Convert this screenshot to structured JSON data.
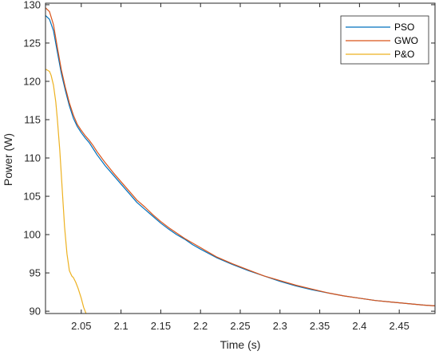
{
  "chart_data": {
    "type": "line",
    "title": "",
    "xlabel": "Time (s)",
    "ylabel": "Power  (W)",
    "xlim": [
      2.005,
      2.495
    ],
    "ylim": [
      89.7,
      130.2
    ],
    "xticks": [
      2.05,
      2.1,
      2.15,
      2.2,
      2.25,
      2.3,
      2.35,
      2.4,
      2.45
    ],
    "xtick_labels": [
      "2.05",
      "2.1",
      "2.15",
      "2.2",
      "2.25",
      "2.3",
      "2.35",
      "2.4",
      "2.45"
    ],
    "yticks": [
      90,
      95,
      100,
      105,
      110,
      115,
      120,
      125,
      130
    ],
    "ytick_labels": [
      "90",
      "95",
      "100",
      "105",
      "110",
      "115",
      "120",
      "125",
      "130"
    ],
    "grid": false,
    "legend_position": "top-right",
    "series": [
      {
        "name": "PSO",
        "color": "#0072BD",
        "x": [
          2.005,
          2.01,
          2.015,
          2.02,
          2.025,
          2.03,
          2.035,
          2.04,
          2.045,
          2.05,
          2.055,
          2.06,
          2.065,
          2.07,
          2.08,
          2.09,
          2.1,
          2.11,
          2.12,
          2.13,
          2.14,
          2.15,
          2.16,
          2.17,
          2.18,
          2.19,
          2.2,
          2.22,
          2.24,
          2.26,
          2.28,
          2.3,
          2.32,
          2.34,
          2.36,
          2.38,
          2.4,
          2.42,
          2.44,
          2.46,
          2.48,
          2.495
        ],
        "y": [
          128.6,
          128.1,
          126.6,
          123.8,
          121.0,
          118.8,
          116.8,
          115.2,
          114.1,
          113.3,
          112.6,
          112.0,
          111.2,
          110.4,
          109.0,
          107.8,
          106.6,
          105.4,
          104.2,
          103.3,
          102.4,
          101.5,
          100.7,
          100.0,
          99.4,
          98.7,
          98.1,
          97.0,
          96.1,
          95.3,
          94.6,
          93.9,
          93.3,
          92.8,
          92.4,
          92.0,
          91.7,
          91.4,
          91.2,
          91.0,
          90.8,
          90.7
        ]
      },
      {
        "name": "GWO",
        "color": "#D95319",
        "x": [
          2.005,
          2.01,
          2.015,
          2.02,
          2.025,
          2.03,
          2.035,
          2.04,
          2.045,
          2.05,
          2.055,
          2.06,
          2.065,
          2.07,
          2.08,
          2.09,
          2.1,
          2.11,
          2.12,
          2.13,
          2.14,
          2.15,
          2.16,
          2.17,
          2.18,
          2.19,
          2.2,
          2.22,
          2.24,
          2.26,
          2.28,
          2.3,
          2.32,
          2.34,
          2.36,
          2.38,
          2.4,
          2.42,
          2.44,
          2.46,
          2.48,
          2.495
        ],
        "y": [
          129.6,
          129.1,
          127.4,
          124.4,
          121.5,
          119.2,
          117.2,
          115.6,
          114.4,
          113.6,
          112.9,
          112.3,
          111.6,
          110.8,
          109.4,
          108.1,
          106.9,
          105.7,
          104.5,
          103.6,
          102.6,
          101.7,
          100.9,
          100.2,
          99.5,
          98.9,
          98.3,
          97.1,
          96.2,
          95.4,
          94.6,
          94.0,
          93.4,
          92.9,
          92.4,
          92.0,
          91.7,
          91.4,
          91.2,
          91.0,
          90.8,
          90.7
        ]
      },
      {
        "name": "P&O",
        "color": "#EDB120",
        "x": [
          2.005,
          2.01,
          2.012,
          2.015,
          2.018,
          2.02,
          2.023,
          2.026,
          2.029,
          2.032,
          2.035,
          2.038,
          2.04,
          2.043,
          2.046,
          2.05,
          2.053,
          2.056
        ],
        "y": [
          121.6,
          121.3,
          120.8,
          119.5,
          117.3,
          115.0,
          111.0,
          106.0,
          101.0,
          97.5,
          95.3,
          94.6,
          94.4,
          93.8,
          93.0,
          91.7,
          90.5,
          89.7
        ]
      }
    ]
  }
}
